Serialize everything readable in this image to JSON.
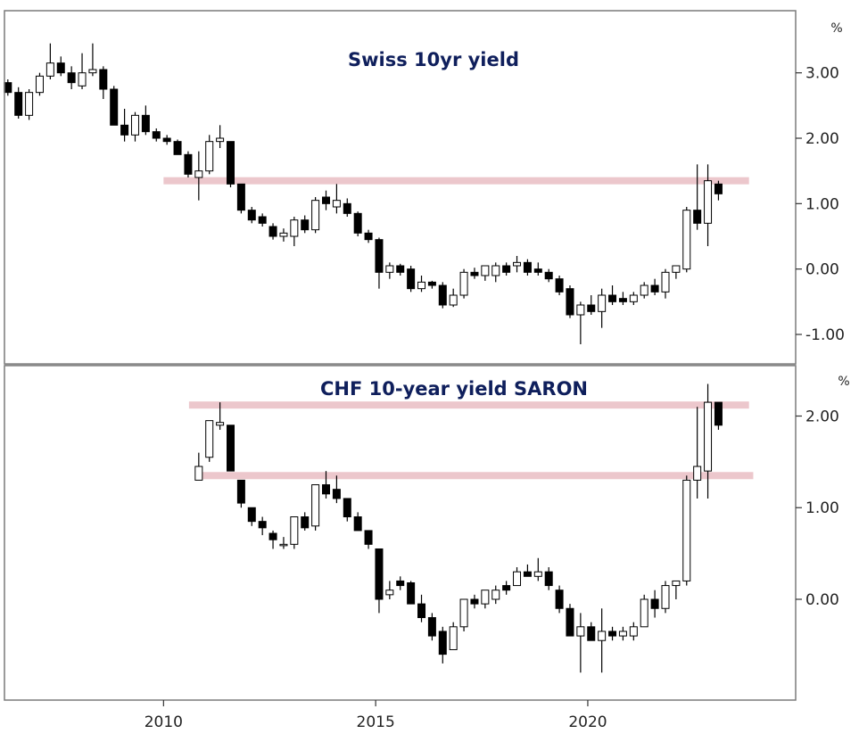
{
  "colors": {
    "title": "#0f1f5c",
    "frame": "#7a7a7a",
    "candle_up_fill": "#ffffff",
    "candle_down_fill": "#000000",
    "candle_stroke": "#000000",
    "band": "#ecc7cc"
  },
  "chart_data": [
    {
      "type": "candlestick",
      "title": "Swiss 10yr yield",
      "unit_label": "%",
      "ylim": [
        -1.45,
        3.95
      ],
      "yticks": [
        3.0,
        2.0,
        1.0,
        0.0,
        -1.0
      ],
      "ytick_labels": [
        "3.00",
        "2.00",
        "1.00",
        "0.00",
        "-1.00"
      ],
      "xticks": [
        2010,
        2015,
        2020
      ],
      "xtick_labels": [
        "2010",
        "2015",
        "2020"
      ],
      "xlim": [
        2006.25,
        2024.9
      ],
      "grid": false,
      "horizontal_bands": [
        {
          "y": 1.35,
          "x_from": 2010.0,
          "x_to": 2023.8
        }
      ],
      "candles": [
        {
          "t": 2006.33,
          "o": 2.85,
          "h": 2.9,
          "l": 2.65,
          "c": 2.7
        },
        {
          "t": 2006.58,
          "o": 2.7,
          "h": 2.78,
          "l": 2.3,
          "c": 2.35
        },
        {
          "t": 2006.83,
          "o": 2.35,
          "h": 2.75,
          "l": 2.28,
          "c": 2.7
        },
        {
          "t": 2007.08,
          "o": 2.7,
          "h": 3.0,
          "l": 2.65,
          "c": 2.95
        },
        {
          "t": 2007.33,
          "o": 2.95,
          "h": 3.45,
          "l": 2.9,
          "c": 3.15
        },
        {
          "t": 2007.58,
          "o": 3.15,
          "h": 3.25,
          "l": 2.95,
          "c": 3.0
        },
        {
          "t": 2007.83,
          "o": 3.0,
          "h": 3.1,
          "l": 2.75,
          "c": 2.85
        },
        {
          "t": 2008.08,
          "o": 2.8,
          "h": 3.3,
          "l": 2.75,
          "c": 3.0
        },
        {
          "t": 2008.33,
          "o": 3.0,
          "h": 3.45,
          "l": 2.95,
          "c": 3.05
        },
        {
          "t": 2008.58,
          "o": 3.05,
          "h": 3.1,
          "l": 2.6,
          "c": 2.75
        },
        {
          "t": 2008.83,
          "o": 2.75,
          "h": 2.8,
          "l": 2.2,
          "c": 2.2
        },
        {
          "t": 2009.08,
          "o": 2.2,
          "h": 2.45,
          "l": 1.95,
          "c": 2.05
        },
        {
          "t": 2009.33,
          "o": 2.05,
          "h": 2.4,
          "l": 1.95,
          "c": 2.35
        },
        {
          "t": 2009.58,
          "o": 2.35,
          "h": 2.5,
          "l": 2.05,
          "c": 2.1
        },
        {
          "t": 2009.83,
          "o": 2.1,
          "h": 2.15,
          "l": 1.95,
          "c": 2.0
        },
        {
          "t": 2010.08,
          "o": 2.0,
          "h": 2.05,
          "l": 1.9,
          "c": 1.95
        },
        {
          "t": 2010.33,
          "o": 1.95,
          "h": 1.98,
          "l": 1.75,
          "c": 1.75
        },
        {
          "t": 2010.58,
          "o": 1.75,
          "h": 1.8,
          "l": 1.4,
          "c": 1.45
        },
        {
          "t": 2010.83,
          "o": 1.4,
          "h": 1.8,
          "l": 1.05,
          "c": 1.5
        },
        {
          "t": 2011.08,
          "o": 1.5,
          "h": 2.05,
          "l": 1.45,
          "c": 1.95
        },
        {
          "t": 2011.33,
          "o": 1.95,
          "h": 2.2,
          "l": 1.85,
          "c": 2.0
        },
        {
          "t": 2011.58,
          "o": 1.95,
          "h": 1.95,
          "l": 1.25,
          "c": 1.3
        },
        {
          "t": 2011.83,
          "o": 1.3,
          "h": 1.3,
          "l": 0.85,
          "c": 0.9
        },
        {
          "t": 2012.08,
          "o": 0.9,
          "h": 0.95,
          "l": 0.7,
          "c": 0.75
        },
        {
          "t": 2012.33,
          "o": 0.8,
          "h": 0.85,
          "l": 0.65,
          "c": 0.7
        },
        {
          "t": 2012.58,
          "o": 0.65,
          "h": 0.7,
          "l": 0.45,
          "c": 0.5
        },
        {
          "t": 2012.83,
          "o": 0.5,
          "h": 0.62,
          "l": 0.42,
          "c": 0.55
        },
        {
          "t": 2013.08,
          "o": 0.5,
          "h": 0.8,
          "l": 0.35,
          "c": 0.75
        },
        {
          "t": 2013.33,
          "o": 0.75,
          "h": 0.82,
          "l": 0.55,
          "c": 0.6
        },
        {
          "t": 2013.58,
          "o": 0.6,
          "h": 1.1,
          "l": 0.55,
          "c": 1.05
        },
        {
          "t": 2013.83,
          "o": 1.1,
          "h": 1.2,
          "l": 0.9,
          "c": 1.0
        },
        {
          "t": 2014.08,
          "o": 0.95,
          "h": 1.3,
          "l": 0.85,
          "c": 1.05
        },
        {
          "t": 2014.33,
          "o": 1.0,
          "h": 1.08,
          "l": 0.8,
          "c": 0.85
        },
        {
          "t": 2014.58,
          "o": 0.85,
          "h": 0.88,
          "l": 0.5,
          "c": 0.55
        },
        {
          "t": 2014.83,
          "o": 0.55,
          "h": 0.6,
          "l": 0.4,
          "c": 0.45
        },
        {
          "t": 2015.08,
          "o": 0.45,
          "h": 0.48,
          "l": -0.3,
          "c": -0.05
        },
        {
          "t": 2015.33,
          "o": -0.05,
          "h": 0.1,
          "l": -0.15,
          "c": 0.05
        },
        {
          "t": 2015.58,
          "o": 0.05,
          "h": 0.08,
          "l": -0.1,
          "c": -0.05
        },
        {
          "t": 2015.83,
          "o": 0.0,
          "h": 0.05,
          "l": -0.35,
          "c": -0.3
        },
        {
          "t": 2016.08,
          "o": -0.3,
          "h": -0.1,
          "l": -0.35,
          "c": -0.2
        },
        {
          "t": 2016.33,
          "o": -0.2,
          "h": -0.18,
          "l": -0.3,
          "c": -0.25
        },
        {
          "t": 2016.58,
          "o": -0.25,
          "h": -0.2,
          "l": -0.6,
          "c": -0.55
        },
        {
          "t": 2016.83,
          "o": -0.55,
          "h": -0.3,
          "l": -0.58,
          "c": -0.4
        },
        {
          "t": 2017.08,
          "o": -0.4,
          "h": 0.0,
          "l": -0.45,
          "c": -0.05
        },
        {
          "t": 2017.33,
          "o": -0.05,
          "h": 0.02,
          "l": -0.15,
          "c": -0.1
        },
        {
          "t": 2017.58,
          "o": -0.1,
          "h": 0.05,
          "l": -0.18,
          "c": 0.05
        },
        {
          "t": 2017.83,
          "o": -0.1,
          "h": 0.1,
          "l": -0.2,
          "c": 0.05
        },
        {
          "t": 2018.08,
          "o": 0.05,
          "h": 0.1,
          "l": -0.1,
          "c": -0.05
        },
        {
          "t": 2018.33,
          "o": 0.05,
          "h": 0.2,
          "l": -0.05,
          "c": 0.1
        },
        {
          "t": 2018.58,
          "o": 0.1,
          "h": 0.15,
          "l": -0.1,
          "c": -0.05
        },
        {
          "t": 2018.83,
          "o": 0.0,
          "h": 0.1,
          "l": -0.1,
          "c": -0.05
        },
        {
          "t": 2019.08,
          "o": -0.05,
          "h": 0.0,
          "l": -0.2,
          "c": -0.15
        },
        {
          "t": 2019.33,
          "o": -0.15,
          "h": -0.1,
          "l": -0.4,
          "c": -0.35
        },
        {
          "t": 2019.58,
          "o": -0.3,
          "h": -0.25,
          "l": -0.75,
          "c": -0.7
        },
        {
          "t": 2019.83,
          "o": -0.7,
          "h": -0.5,
          "l": -1.15,
          "c": -0.55
        },
        {
          "t": 2020.08,
          "o": -0.55,
          "h": -0.4,
          "l": -0.7,
          "c": -0.65
        },
        {
          "t": 2020.33,
          "o": -0.65,
          "h": -0.3,
          "l": -0.9,
          "c": -0.4
        },
        {
          "t": 2020.58,
          "o": -0.4,
          "h": -0.25,
          "l": -0.55,
          "c": -0.5
        },
        {
          "t": 2020.83,
          "o": -0.45,
          "h": -0.35,
          "l": -0.55,
          "c": -0.5
        },
        {
          "t": 2021.08,
          "o": -0.5,
          "h": -0.35,
          "l": -0.55,
          "c": -0.4
        },
        {
          "t": 2021.33,
          "o": -0.4,
          "h": -0.2,
          "l": -0.45,
          "c": -0.25
        },
        {
          "t": 2021.58,
          "o": -0.25,
          "h": -0.15,
          "l": -0.4,
          "c": -0.35
        },
        {
          "t": 2021.83,
          "o": -0.35,
          "h": 0.0,
          "l": -0.45,
          "c": -0.05
        },
        {
          "t": 2022.08,
          "o": -0.05,
          "h": 0.05,
          "l": -0.15,
          "c": 0.05
        },
        {
          "t": 2022.33,
          "o": 0.0,
          "h": 0.95,
          "l": -0.05,
          "c": 0.9
        },
        {
          "t": 2022.58,
          "o": 0.9,
          "h": 1.6,
          "l": 0.6,
          "c": 0.7
        },
        {
          "t": 2022.83,
          "o": 0.7,
          "h": 1.6,
          "l": 0.35,
          "c": 1.35
        },
        {
          "t": 2023.08,
          "o": 1.3,
          "h": 1.35,
          "l": 1.05,
          "c": 1.15
        }
      ]
    },
    {
      "type": "candlestick",
      "title": "CHF 10-year yield SARON",
      "unit_label": "%",
      "ylim": [
        -1.1,
        2.55
      ],
      "yticks": [
        2.0,
        1.0,
        0.0
      ],
      "ytick_labels": [
        "2.00",
        "1.00",
        "0.00"
      ],
      "xticks": [
        2010,
        2015,
        2020
      ],
      "xtick_labels": [
        "2010",
        "2015",
        "2020"
      ],
      "xlim": [
        2006.25,
        2024.9
      ],
      "grid": false,
      "horizontal_bands": [
        {
          "y": 2.12,
          "x_from": 2010.6,
          "x_to": 2023.8
        },
        {
          "y": 1.35,
          "x_from": 2010.75,
          "x_to": 2023.9
        }
      ],
      "candles": [
        {
          "t": 2010.83,
          "o": 1.3,
          "h": 1.6,
          "l": 1.3,
          "c": 1.45
        },
        {
          "t": 2011.08,
          "o": 1.55,
          "h": 1.95,
          "l": 1.5,
          "c": 1.95
        },
        {
          "t": 2011.33,
          "o": 1.9,
          "h": 2.15,
          "l": 1.85,
          "c": 1.93
        },
        {
          "t": 2011.58,
          "o": 1.9,
          "h": 1.9,
          "l": 1.4,
          "c": 1.4
        },
        {
          "t": 2011.83,
          "o": 1.3,
          "h": 1.3,
          "l": 1.0,
          "c": 1.05
        },
        {
          "t": 2012.08,
          "o": 1.0,
          "h": 1.0,
          "l": 0.8,
          "c": 0.85
        },
        {
          "t": 2012.33,
          "o": 0.85,
          "h": 0.9,
          "l": 0.7,
          "c": 0.78
        },
        {
          "t": 2012.58,
          "o": 0.72,
          "h": 0.75,
          "l": 0.55,
          "c": 0.65
        },
        {
          "t": 2012.83,
          "o": 0.6,
          "h": 0.68,
          "l": 0.55,
          "c": 0.6
        },
        {
          "t": 2013.08,
          "o": 0.6,
          "h": 0.9,
          "l": 0.55,
          "c": 0.9
        },
        {
          "t": 2013.33,
          "o": 0.9,
          "h": 0.95,
          "l": 0.75,
          "c": 0.78
        },
        {
          "t": 2013.58,
          "o": 0.8,
          "h": 1.25,
          "l": 0.75,
          "c": 1.25
        },
        {
          "t": 2013.83,
          "o": 1.25,
          "h": 1.4,
          "l": 1.1,
          "c": 1.15
        },
        {
          "t": 2014.08,
          "o": 1.2,
          "h": 1.35,
          "l": 1.05,
          "c": 1.1
        },
        {
          "t": 2014.33,
          "o": 1.1,
          "h": 1.1,
          "l": 0.85,
          "c": 0.9
        },
        {
          "t": 2014.58,
          "o": 0.9,
          "h": 0.95,
          "l": 0.75,
          "c": 0.75
        },
        {
          "t": 2014.83,
          "o": 0.75,
          "h": 0.75,
          "l": 0.55,
          "c": 0.6
        },
        {
          "t": 2015.08,
          "o": 0.55,
          "h": 0.55,
          "l": -0.15,
          "c": 0.0
        },
        {
          "t": 2015.33,
          "o": 0.05,
          "h": 0.2,
          "l": 0.0,
          "c": 0.1
        },
        {
          "t": 2015.58,
          "o": 0.2,
          "h": 0.25,
          "l": 0.1,
          "c": 0.15
        },
        {
          "t": 2015.83,
          "o": 0.18,
          "h": 0.2,
          "l": -0.05,
          "c": -0.05
        },
        {
          "t": 2016.08,
          "o": -0.05,
          "h": 0.05,
          "l": -0.25,
          "c": -0.2
        },
        {
          "t": 2016.33,
          "o": -0.2,
          "h": -0.15,
          "l": -0.45,
          "c": -0.4
        },
        {
          "t": 2016.58,
          "o": -0.35,
          "h": -0.3,
          "l": -0.7,
          "c": -0.6
        },
        {
          "t": 2016.83,
          "o": -0.55,
          "h": -0.25,
          "l": -0.55,
          "c": -0.3
        },
        {
          "t": 2017.08,
          "o": -0.3,
          "h": 0.0,
          "l": -0.35,
          "c": 0.0
        },
        {
          "t": 2017.33,
          "o": 0.0,
          "h": 0.05,
          "l": -0.1,
          "c": -0.05
        },
        {
          "t": 2017.58,
          "o": -0.05,
          "h": 0.1,
          "l": -0.1,
          "c": 0.1
        },
        {
          "t": 2017.83,
          "o": 0.0,
          "h": 0.15,
          "l": -0.05,
          "c": 0.1
        },
        {
          "t": 2018.08,
          "o": 0.15,
          "h": 0.2,
          "l": 0.05,
          "c": 0.1
        },
        {
          "t": 2018.33,
          "o": 0.15,
          "h": 0.35,
          "l": 0.15,
          "c": 0.3
        },
        {
          "t": 2018.58,
          "o": 0.3,
          "h": 0.38,
          "l": 0.25,
          "c": 0.25
        },
        {
          "t": 2018.83,
          "o": 0.25,
          "h": 0.45,
          "l": 0.2,
          "c": 0.3
        },
        {
          "t": 2019.08,
          "o": 0.3,
          "h": 0.35,
          "l": 0.1,
          "c": 0.15
        },
        {
          "t": 2019.33,
          "o": 0.1,
          "h": 0.15,
          "l": -0.15,
          "c": -0.1
        },
        {
          "t": 2019.58,
          "o": -0.1,
          "h": -0.05,
          "l": -0.4,
          "c": -0.4
        },
        {
          "t": 2019.83,
          "o": -0.4,
          "h": -0.15,
          "l": -0.8,
          "c": -0.3
        },
        {
          "t": 2020.08,
          "o": -0.3,
          "h": -0.25,
          "l": -0.45,
          "c": -0.45
        },
        {
          "t": 2020.33,
          "o": -0.45,
          "h": -0.1,
          "l": -0.8,
          "c": -0.35
        },
        {
          "t": 2020.58,
          "o": -0.35,
          "h": -0.3,
          "l": -0.45,
          "c": -0.4
        },
        {
          "t": 2020.83,
          "o": -0.4,
          "h": -0.3,
          "l": -0.45,
          "c": -0.35
        },
        {
          "t": 2021.08,
          "o": -0.4,
          "h": -0.25,
          "l": -0.45,
          "c": -0.3
        },
        {
          "t": 2021.33,
          "o": -0.3,
          "h": 0.05,
          "l": -0.3,
          "c": 0.0
        },
        {
          "t": 2021.58,
          "o": 0.0,
          "h": 0.1,
          "l": -0.2,
          "c": -0.1
        },
        {
          "t": 2021.83,
          "o": -0.1,
          "h": 0.2,
          "l": -0.15,
          "c": 0.15
        },
        {
          "t": 2022.08,
          "o": 0.15,
          "h": 0.2,
          "l": 0.0,
          "c": 0.2
        },
        {
          "t": 2022.33,
          "o": 0.2,
          "h": 1.35,
          "l": 0.15,
          "c": 1.3
        },
        {
          "t": 2022.58,
          "o": 1.3,
          "h": 2.1,
          "l": 1.1,
          "c": 1.45
        },
        {
          "t": 2022.83,
          "o": 1.4,
          "h": 2.35,
          "l": 1.1,
          "c": 2.15
        },
        {
          "t": 2023.08,
          "o": 2.15,
          "h": 2.15,
          "l": 1.85,
          "c": 1.9
        }
      ]
    }
  ]
}
